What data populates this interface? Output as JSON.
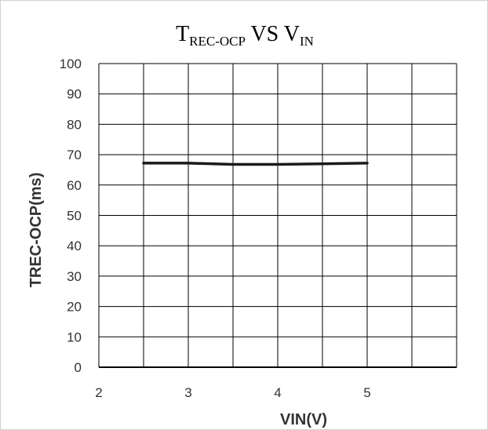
{
  "chart_data": {
    "type": "line",
    "title": {
      "t_main": "T",
      "t_sub": "REC-OCP",
      "vs": " VS V",
      "v_sub": "IN"
    },
    "xlabel": "VIN(V)",
    "ylabel": "TREC-OCP(ms)",
    "xlim": [
      2,
      6
    ],
    "ylim": [
      0,
      100
    ],
    "xticks": [
      "2",
      "3",
      "4",
      "5"
    ],
    "yticks": [
      "0",
      "10",
      "20",
      "30",
      "40",
      "50",
      "60",
      "70",
      "80",
      "90",
      "100"
    ],
    "grid": true,
    "legend": "none",
    "series": [
      {
        "color": "#1a1a1a",
        "x": [
          2.5,
          3.0,
          3.5,
          4.0,
          4.5,
          5.0
        ],
        "y": [
          67.2,
          67.2,
          66.8,
          66.8,
          67.0,
          67.2
        ]
      }
    ]
  }
}
